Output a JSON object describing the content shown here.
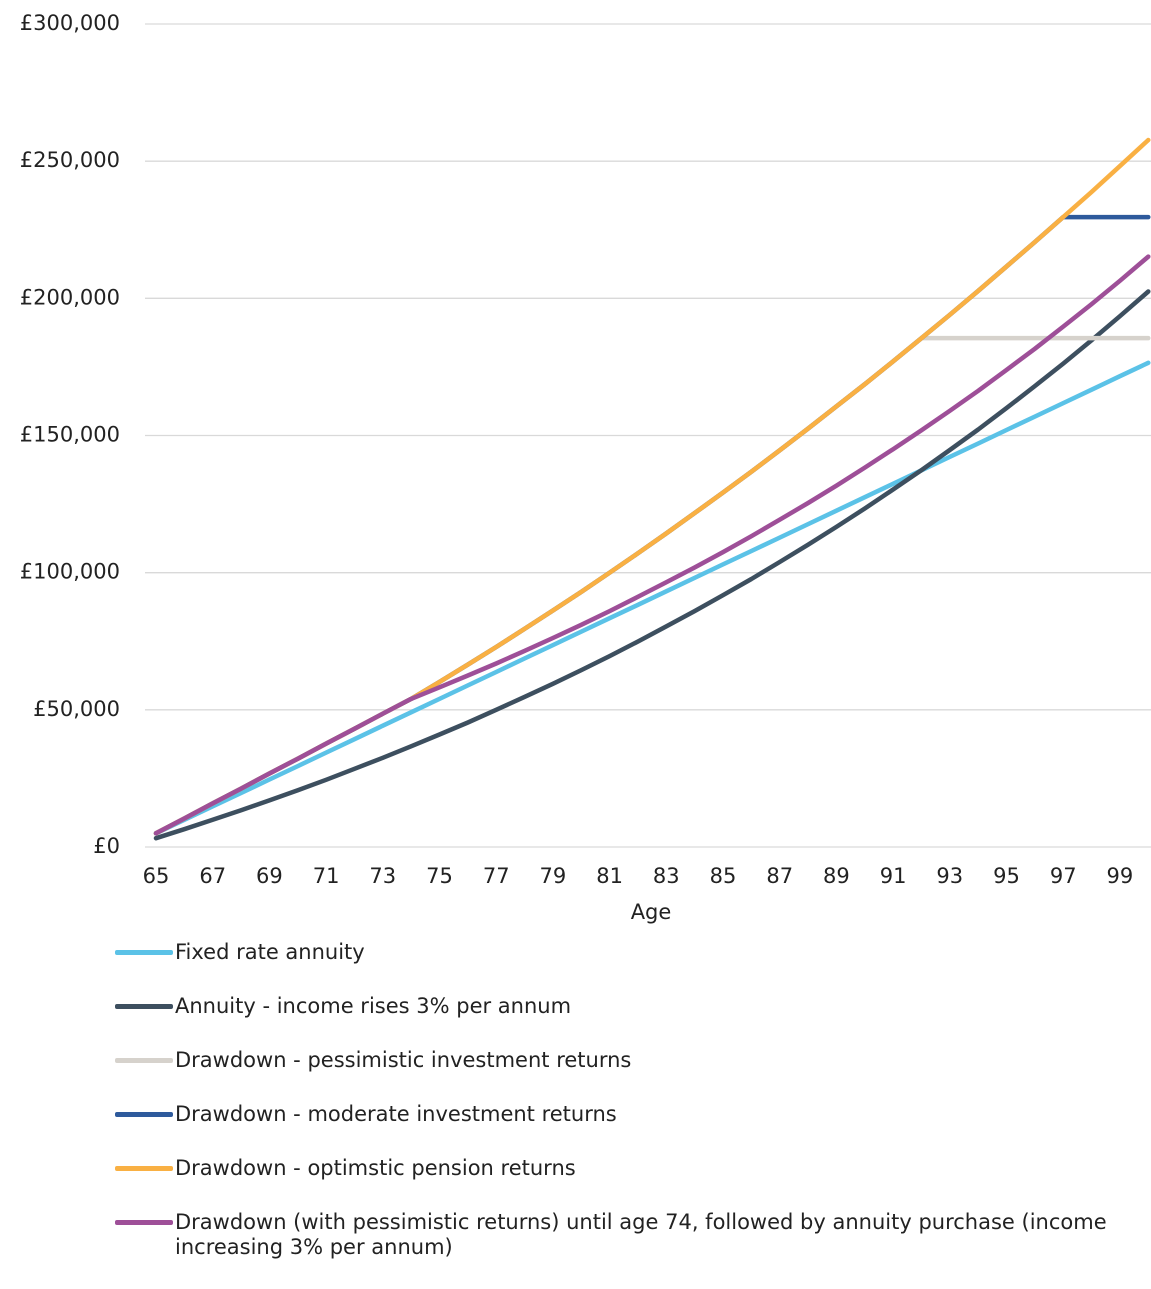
{
  "chart_data": {
    "type": "line",
    "x_label": "Age",
    "categories": [
      65,
      null,
      67,
      null,
      69,
      null,
      71,
      null,
      73,
      null,
      75,
      null,
      77,
      null,
      79,
      null,
      81,
      null,
      83,
      null,
      85,
      null,
      87,
      null,
      89,
      null,
      91,
      null,
      93,
      null,
      95,
      null,
      97,
      null,
      99,
      null
    ],
    "ylim": [
      0,
      300000
    ],
    "yticks": [
      {
        "value": 0,
        "label": "£0"
      },
      {
        "value": 50000,
        "label": "£50,000"
      },
      {
        "value": 100000,
        "label": "£100,000"
      },
      {
        "value": 150000,
        "label": "£150,000"
      },
      {
        "value": 200000,
        "label": "£200,000"
      },
      {
        "value": 250000,
        "label": "£250,000"
      },
      {
        "value": 300000,
        "label": "£300,000"
      }
    ],
    "grid": true,
    "legend": "bottom",
    "series": [
      {
        "name": "Fixed rate annuity",
        "color": "#5bc2e7",
        "values": [
          5000,
          9900,
          14800,
          19700,
          24600,
          29500,
          34400,
          39300,
          44200,
          49100,
          54000,
          58900,
          63800,
          68700,
          73600,
          78500,
          83400,
          88300,
          93200,
          98100,
          103000,
          107900,
          112800,
          117700,
          122600,
          127500,
          132400,
          137300,
          142200,
          147100,
          152000,
          156900,
          161800,
          166700,
          171600,
          176500
        ]
      },
      {
        "name": "Annuity - income rises 3% per annum",
        "color": "#3d4f5f",
        "values": [
          3200,
          6500,
          9900,
          13400,
          17000,
          20700,
          24500,
          28500,
          32500,
          36700,
          41000,
          45400,
          50000,
          54700,
          59500,
          64500,
          69600,
          74900,
          80400,
          86000,
          91800,
          97700,
          103900,
          110200,
          116700,
          123400,
          130300,
          137400,
          144700,
          152200,
          160000,
          168000,
          176200,
          184700,
          193500,
          202500
        ]
      },
      {
        "name": "Drawdown - pessimistic investment returns",
        "color": "#d6d2cc",
        "values": [
          5000,
          10400,
          15900,
          21300,
          26800,
          32200,
          37700,
          43100,
          48600,
          54000,
          60200,
          66500,
          72900,
          79500,
          86200,
          93000,
          100000,
          107100,
          114300,
          121700,
          129200,
          136800,
          144600,
          152500,
          160600,
          168700,
          177000,
          185500,
          185500,
          185500,
          185500,
          185500,
          185500,
          185500,
          185500,
          185500
        ]
      },
      {
        "name": "Drawdown - moderate investment returns",
        "color": "#2e5a9c",
        "values": [
          5000,
          10400,
          15900,
          21300,
          26800,
          32200,
          37700,
          43100,
          48600,
          54000,
          60200,
          66500,
          72900,
          79500,
          86200,
          93000,
          100000,
          107100,
          114300,
          121700,
          129200,
          136800,
          144600,
          152500,
          160600,
          168700,
          177000,
          185500,
          194000,
          202700,
          211600,
          220500,
          229600,
          229600,
          229600,
          229600
        ]
      },
      {
        "name": "Drawdown - optimstic pension returns",
        "color": "#f9b043",
        "values": [
          5000,
          10400,
          15900,
          21300,
          26800,
          32200,
          37700,
          43100,
          48600,
          54000,
          60200,
          66500,
          72900,
          79500,
          86200,
          93000,
          100000,
          107100,
          114300,
          121700,
          129200,
          136800,
          144600,
          152500,
          160600,
          168700,
          177000,
          185500,
          194000,
          202700,
          211600,
          220500,
          229600,
          238800,
          248200,
          257700
        ]
      },
      {
        "name": "Drawdown (with pessimistic returns) until age 74, followed by annuity purchase (income increasing 3% per annum)",
        "color": "#9e4f98",
        "values": [
          5000,
          10400,
          15900,
          21300,
          26800,
          32200,
          37700,
          43100,
          48600,
          54000,
          58200,
          62500,
          66900,
          71500,
          76200,
          81000,
          86000,
          91200,
          96500,
          101900,
          107500,
          113300,
          119300,
          125400,
          131700,
          138300,
          145000,
          151900,
          159000,
          166300,
          173900,
          181600,
          189700,
          197900,
          206400,
          215200
        ]
      }
    ]
  }
}
